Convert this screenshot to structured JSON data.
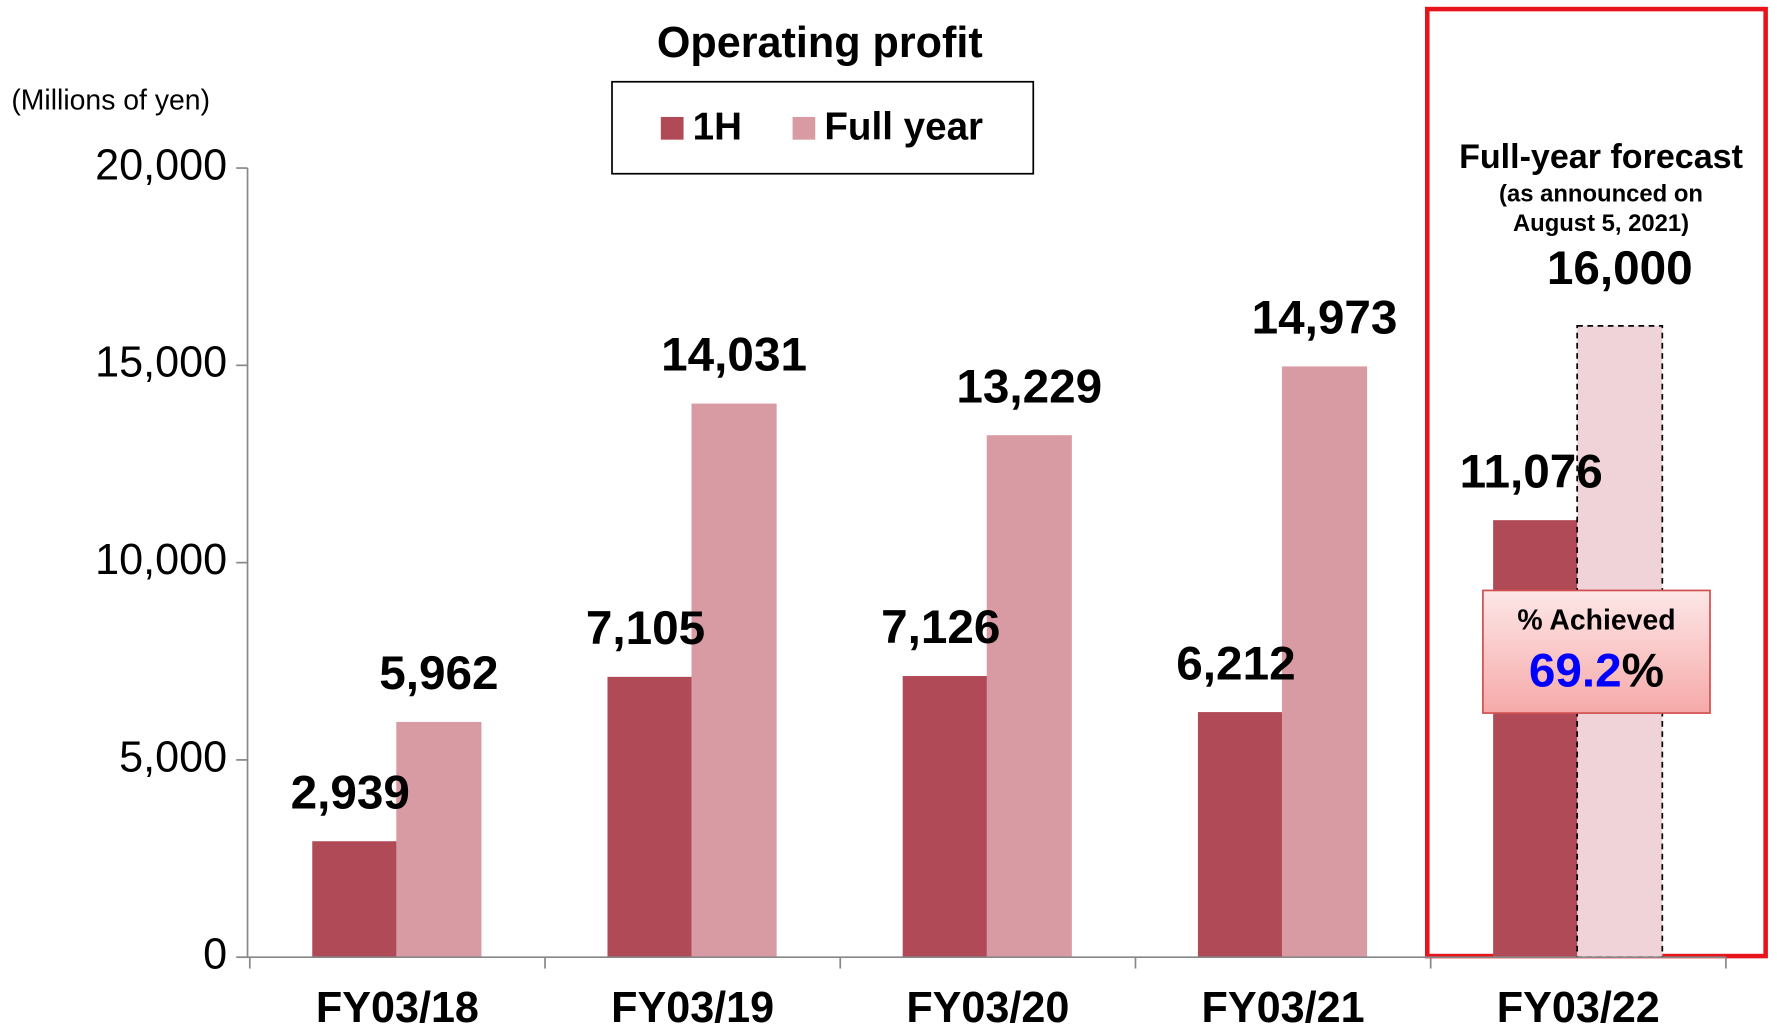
{
  "chart_data": {
    "type": "bar",
    "title": "Operating profit",
    "y_axis_label": "(Millions of yen)",
    "categories": [
      "FY03/18",
      "FY03/19",
      "FY03/20",
      "FY03/21",
      "FY03/22"
    ],
    "series": [
      {
        "name": "1H",
        "color": "#b04a56",
        "values": [
          2939,
          7105,
          7126,
          6212,
          11076
        ],
        "value_labels": [
          "2,939",
          "7,105",
          "7,126",
          "6,212",
          "11,076"
        ]
      },
      {
        "name": "Full year",
        "color": "#d89ba3",
        "values": [
          5962,
          14031,
          13229,
          14973,
          16000
        ],
        "value_labels": [
          "5,962",
          "14,031",
          "13,229",
          "14,973",
          "16,000"
        ]
      }
    ],
    "forecast_color": "#f0d3d8",
    "highlight_color": "#0000ff",
    "ylim": [
      0,
      20000
    ],
    "yticks": [
      0,
      {
        "value": 5000,
        "label": "5,000"
      },
      {
        "value": 10000,
        "label": "10,000"
      },
      {
        "value": 15000,
        "label": "15,000"
      },
      {
        "value": 20000,
        "label": "20,000"
      }
    ],
    "annotations": {
      "forecast_title": "Full-year forecast",
      "forecast_note_1": "(as announced on",
      "forecast_note_2": "August 5, 2021)",
      "achieved_label": "% Achieved",
      "achieved_value": "69.2",
      "achieved_unit": "%"
    }
  }
}
